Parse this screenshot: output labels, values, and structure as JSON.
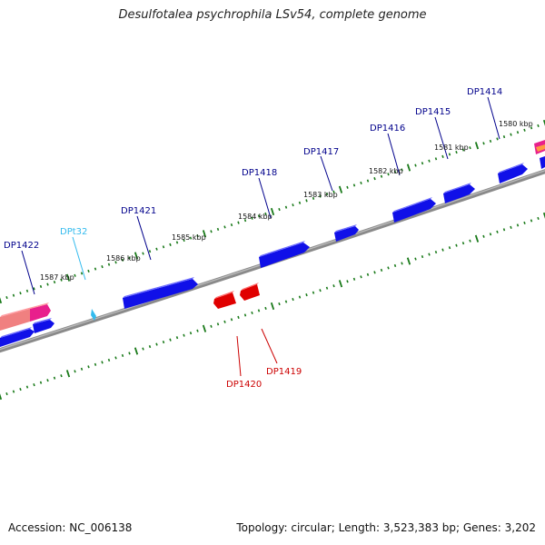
{
  "header": {
    "title": "Desulfotalea psychrophila LSv54, complete genome"
  },
  "footer": {
    "accession": "Accession: NC_006138",
    "summary": "Topology: circular; Length: 3,523,383 bp; Genes: 3,202"
  },
  "colors": {
    "forward_gene": "#1010e8",
    "reverse_gene": "#e00000",
    "trna": "#33bbee",
    "backbone": "#888888",
    "ticks": "#1a7a1a",
    "label_forward": "#00008b",
    "label_reverse": "#cc0000",
    "label_trna": "#33bbee"
  },
  "scale_labels": [
    "1580 kbp",
    "1581 kbp",
    "1582 kbp",
    "1583 kbp",
    "1584 kbp",
    "1585 kbp",
    "1586 kbp",
    "1587 kbp"
  ],
  "gene_labels": [
    {
      "id": "DP1414",
      "strand": "forward"
    },
    {
      "id": "DP1415",
      "strand": "forward"
    },
    {
      "id": "DP1416",
      "strand": "forward"
    },
    {
      "id": "DP1417",
      "strand": "forward"
    },
    {
      "id": "DP1418",
      "strand": "forward"
    },
    {
      "id": "DP1421",
      "strand": "forward"
    },
    {
      "id": "DPt32",
      "strand": "trna"
    },
    {
      "id": "DP1422",
      "strand": "forward"
    },
    {
      "id": "DP1419",
      "strand": "reverse"
    },
    {
      "id": "DP1420",
      "strand": "reverse"
    }
  ]
}
